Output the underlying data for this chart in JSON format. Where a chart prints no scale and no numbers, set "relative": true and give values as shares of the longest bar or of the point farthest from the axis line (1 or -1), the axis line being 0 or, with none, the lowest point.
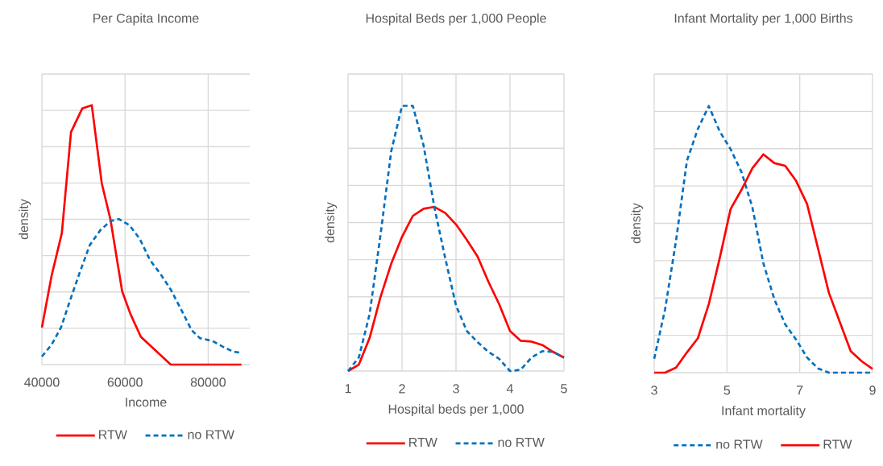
{
  "chart_data": [
    {
      "type": "line",
      "title": "Per Capita Income",
      "xlabel": "Income",
      "ylabel": "density",
      "relative": true,
      "xlim": [
        40000,
        90000
      ],
      "xticks": [
        40000,
        60000,
        80000
      ],
      "grid": true,
      "tick_labels": "x",
      "legend": "bottom",
      "series": [
        {
          "name": "RTW",
          "color": "#ff0000",
          "line_style": "solid",
          "x": [
            40000,
            42300,
            44800,
            47000,
            49700,
            52000,
            54400,
            56500,
            59300,
            61300,
            63800,
            71000,
            88000
          ],
          "values": [
            0.143,
            0.34,
            0.507,
            0.896,
            0.987,
            1.0,
            0.699,
            0.559,
            0.283,
            0.195,
            0.107,
            0,
            0
          ]
        },
        {
          "name": "no RTW",
          "color": "#0070c0",
          "line_style": "dashed",
          "x": [
            40000,
            42300,
            44600,
            47000,
            49000,
            51500,
            54000,
            56500,
            58500,
            61000,
            63500,
            66000,
            68500,
            71000,
            73700,
            76000,
            78000,
            81000,
            84000,
            86000,
            88000
          ],
          "values": [
            0.031,
            0.076,
            0.143,
            0.258,
            0.35,
            0.46,
            0.517,
            0.553,
            0.561,
            0.538,
            0.486,
            0.403,
            0.35,
            0.289,
            0.206,
            0.133,
            0.102,
            0.091,
            0.065,
            0.05,
            0.045
          ]
        }
      ]
    },
    {
      "type": "line",
      "title": "Hospital Beds per 1,000 People",
      "xlabel": "Hospital beds per 1,000",
      "ylabel": "density",
      "relative": true,
      "xlim": [
        1,
        5
      ],
      "xticks": [
        1,
        2,
        3,
        4,
        5
      ],
      "grid": true,
      "tick_labels": "x",
      "legend": "bottom",
      "series": [
        {
          "name": "RTW",
          "color": "#ff0000",
          "line_style": "solid",
          "x": [
            1,
            1.2,
            1.4,
            1.6,
            1.8,
            2.0,
            2.2,
            2.4,
            2.6,
            2.8,
            3.0,
            3.2,
            3.4,
            3.6,
            3.8,
            4.0,
            4.2,
            4.4,
            4.6,
            4.8,
            5
          ],
          "values": [
            0,
            0.024,
            0.125,
            0.278,
            0.405,
            0.506,
            0.585,
            0.612,
            0.619,
            0.596,
            0.553,
            0.495,
            0.432,
            0.337,
            0.252,
            0.151,
            0.114,
            0.111,
            0.098,
            0.072,
            0.051
          ]
        },
        {
          "name": "no RTW",
          "color": "#0070c0",
          "line_style": "dashed",
          "x": [
            1,
            1.2,
            1.4,
            1.6,
            1.8,
            2.0,
            2.2,
            2.4,
            2.6,
            2.8,
            3.0,
            3.2,
            3.4,
            3.6,
            3.8,
            4.0,
            4.2,
            4.4,
            4.6,
            4.8,
            5
          ],
          "values": [
            0,
            0.051,
            0.215,
            0.511,
            0.829,
            1.0,
            1.0,
            0.85,
            0.617,
            0.426,
            0.247,
            0.151,
            0.109,
            0.072,
            0.046,
            0,
            0.005,
            0.051,
            0.075,
            0.072,
            0.051
          ]
        }
      ]
    },
    {
      "type": "line",
      "title": "Infant Mortality per 1,000 Births",
      "xlabel": "Infant mortality",
      "ylabel": "density",
      "relative": true,
      "xlim": [
        3,
        9
      ],
      "xticks": [
        3,
        5,
        7,
        9
      ],
      "grid": true,
      "tick_labels": "x",
      "legend": "bottom",
      "series": [
        {
          "name": "no RTW",
          "color": "#0070c0",
          "line_style": "dashed",
          "x": [
            3,
            3.3,
            3.6,
            3.9,
            4.2,
            4.5,
            4.8,
            5.1,
            5.4,
            5.7,
            6.0,
            6.3,
            6.6,
            6.9,
            7.2,
            7.5,
            7.8,
            9
          ],
          "values": [
            0.052,
            0.238,
            0.495,
            0.795,
            0.914,
            1.0,
            0.905,
            0.838,
            0.752,
            0.619,
            0.41,
            0.276,
            0.181,
            0.124,
            0.057,
            0.016,
            0,
            0
          ]
        },
        {
          "name": "RTW",
          "color": "#ff0000",
          "line_style": "solid",
          "x": [
            3,
            3.3,
            3.6,
            3.9,
            4.2,
            4.5,
            4.8,
            5.1,
            5.4,
            5.7,
            6.0,
            6.3,
            6.6,
            6.9,
            7.2,
            7.5,
            7.8,
            8.1,
            8.4,
            8.7,
            9
          ],
          "values": [
            0,
            0,
            0.019,
            0.076,
            0.129,
            0.257,
            0.429,
            0.614,
            0.686,
            0.767,
            0.819,
            0.786,
            0.776,
            0.719,
            0.633,
            0.467,
            0.3,
            0.19,
            0.081,
            0.043,
            0.014
          ]
        }
      ]
    }
  ]
}
